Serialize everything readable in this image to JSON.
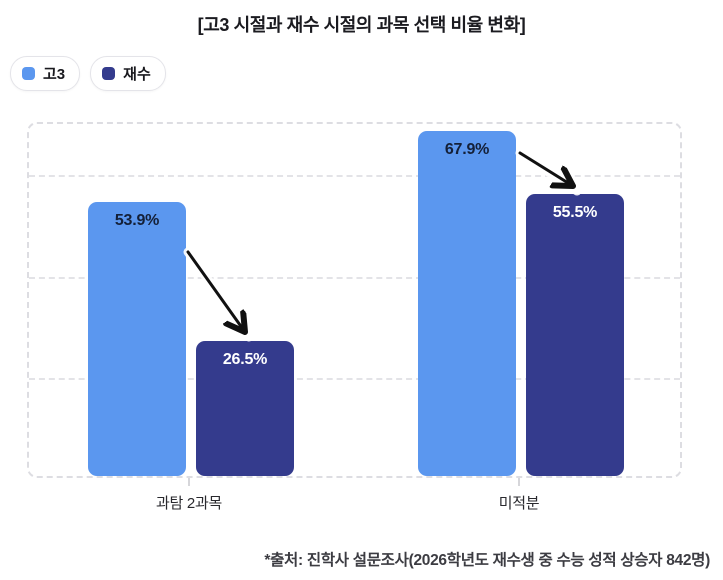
{
  "header": {
    "title": "[고3 시절과 재수 시절의 과목 선택 비율 변화]"
  },
  "footer": {
    "source": "*출처: 진학사 설문조사(2026학년도 재수생 중 수능 성적 상승자 842명)"
  },
  "colors": {
    "series_go3": "#5B97EF",
    "series_jaesu": "#343B8D",
    "grid": "#E3E3E7",
    "arrow": "#111111",
    "label_on_light": "#142038",
    "label_on_dark": "#FFFFFF",
    "background": "#FFFFFF"
  },
  "chart_data": {
    "type": "bar",
    "title": "[고3 시절과 재수 시절의 과목 선택 비율 변화]",
    "categories": [
      "과탐 2과목",
      "미적분"
    ],
    "series": [
      {
        "name": "고3",
        "color": "#5B97EF",
        "values": [
          53.9,
          67.9
        ]
      },
      {
        "name": "재수",
        "color": "#343B8D",
        "values": [
          26.5,
          55.5
        ]
      }
    ],
    "value_suffix": "%",
    "xlabel": "",
    "ylabel": "",
    "ylim": [
      0,
      70
    ],
    "grid_step": 20,
    "grid": true,
    "grid_style": "dashed",
    "legend_position": "top-left",
    "annotations": [
      {
        "type": "arrow",
        "category": "과탐 2과목",
        "from_series": "고3",
        "to_series": "재수",
        "meaning": "decrease"
      },
      {
        "type": "arrow",
        "category": "미적분",
        "from_series": "고3",
        "to_series": "재수",
        "meaning": "decrease"
      }
    ]
  }
}
